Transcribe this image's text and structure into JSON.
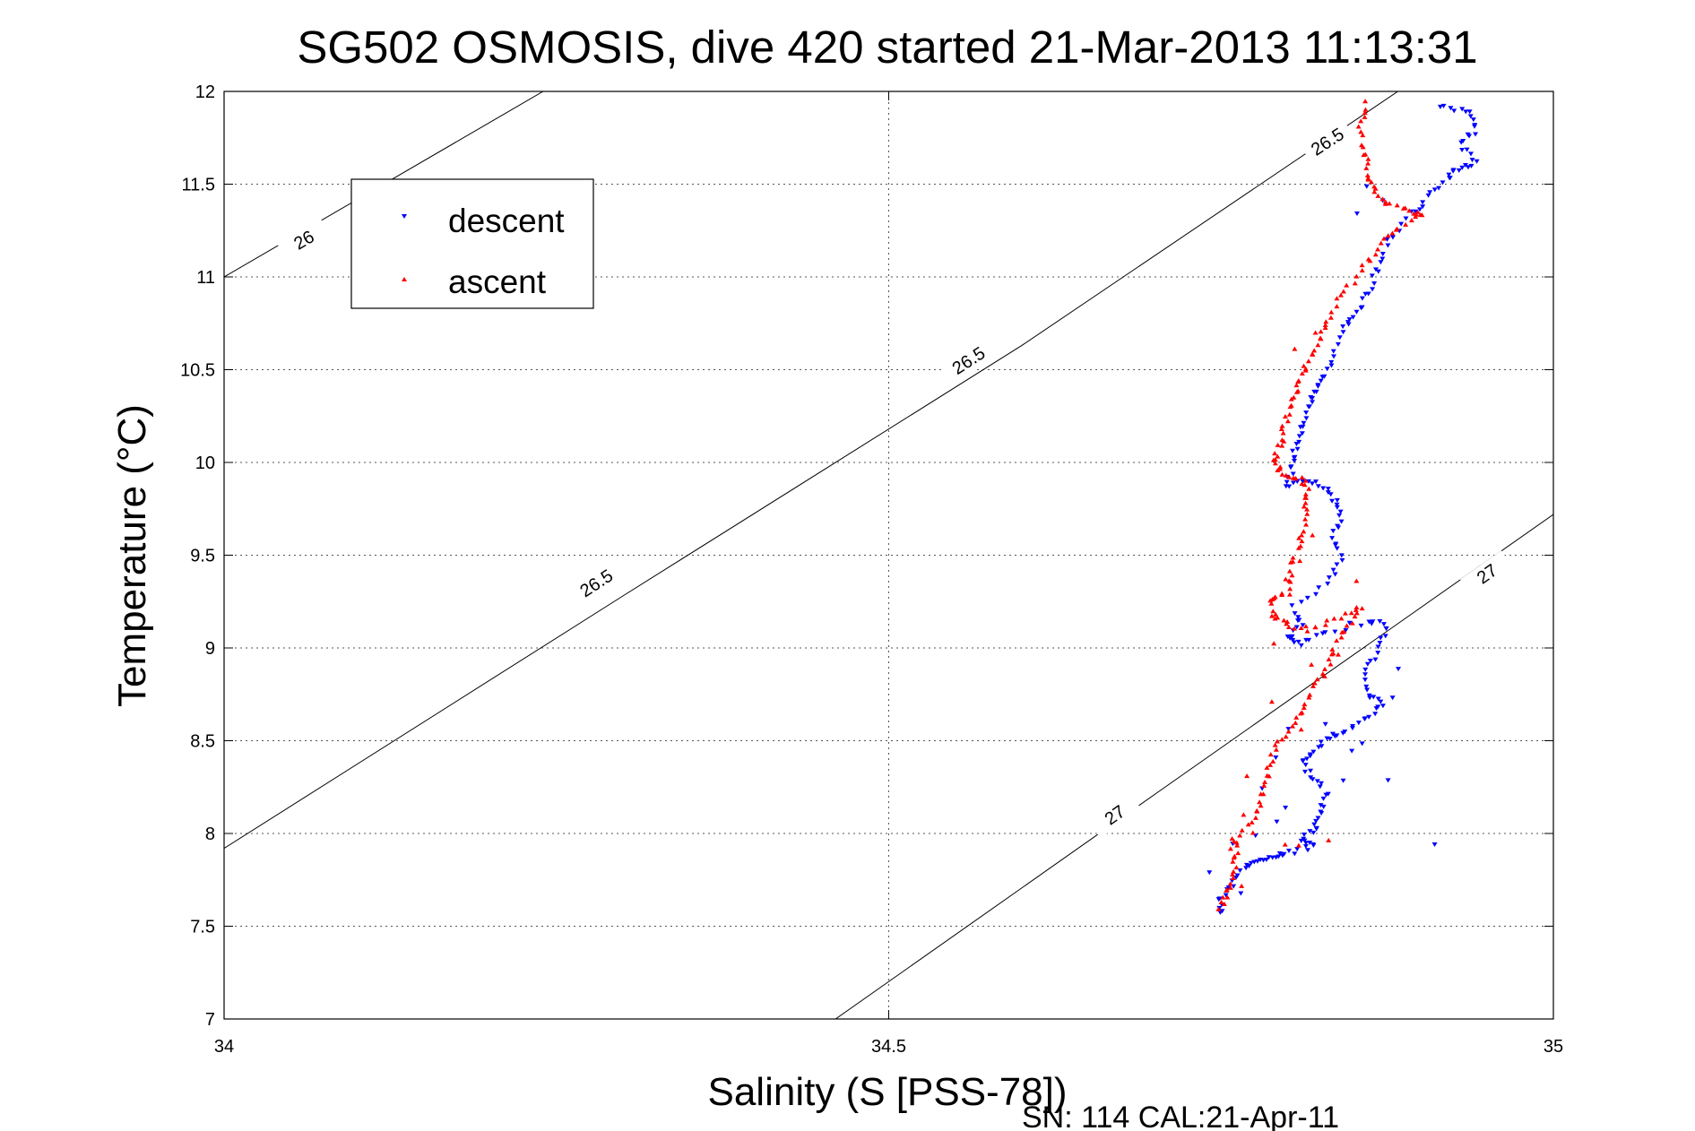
{
  "chart_data": {
    "type": "scatter",
    "title": "SG502 OSMOSIS, dive 420 started 21-Mar-2013 11:13:31",
    "xlabel": "Salinity (S [PSS-78])",
    "ylabel": "Temperature (°C)",
    "footer": "SN: 114  CAL:21-Apr-11",
    "xlim": [
      34,
      35
    ],
    "ylim": [
      7,
      12
    ],
    "x_ticks": [
      "34",
      "34.5",
      "35"
    ],
    "y_ticks": [
      "7",
      "7.5",
      "8",
      "8.5",
      "9",
      "9.5",
      "10",
      "10.5",
      "11",
      "11.5",
      "12"
    ],
    "grid": true,
    "legend_position": "top-left",
    "density_contours": [
      {
        "label": "26",
        "label_at": {
          "x": 34.06,
          "y": 11.2
        },
        "points": [
          [
            34.0,
            11.0
          ],
          [
            34.24,
            12.0
          ]
        ]
      },
      {
        "label": "26.5",
        "label_at": {
          "x": 34.56,
          "y": 10.55
        },
        "points": [
          [
            34.0,
            7.92
          ],
          [
            34.3,
            9.28
          ],
          [
            34.6,
            10.63
          ],
          [
            34.883,
            12.0
          ]
        ]
      },
      {
        "label": "27",
        "label_at": {
          "x": 34.67,
          "y": 8.1
        },
        "points": [
          [
            34.46,
            7.0
          ],
          [
            34.7,
            8.21
          ],
          [
            35.0,
            9.72
          ]
        ]
      }
    ],
    "contour_labels_extra": [
      {
        "label": "26.5",
        "x": 34.28,
        "y": 9.35
      },
      {
        "label": "26.5",
        "x": 34.83,
        "y": 11.73
      },
      {
        "label": "27",
        "x": 34.95,
        "y": 9.4
      }
    ],
    "series": [
      {
        "name": "descent",
        "color": "#0000ff",
        "marker": "triangle-down",
        "path": [
          [
            34.915,
            11.92
          ],
          [
            34.935,
            11.9
          ],
          [
            34.942,
            11.8
          ],
          [
            34.93,
            11.72
          ],
          [
            34.943,
            11.62
          ],
          [
            34.928,
            11.58
          ],
          [
            34.92,
            11.53
          ],
          [
            34.905,
            11.43
          ],
          [
            34.893,
            11.34
          ],
          [
            34.877,
            11.2
          ],
          [
            34.868,
            11.05
          ],
          [
            34.862,
            10.92
          ],
          [
            34.852,
            10.8
          ],
          [
            34.843,
            10.72
          ],
          [
            34.835,
            10.58
          ],
          [
            34.828,
            10.45
          ],
          [
            34.82,
            10.38
          ],
          [
            34.815,
            10.3
          ],
          [
            34.81,
            10.18
          ],
          [
            34.806,
            10.08
          ],
          [
            34.804,
            9.98
          ],
          [
            34.8,
            9.88
          ],
          [
            34.81,
            9.9
          ],
          [
            34.825,
            9.88
          ],
          [
            34.835,
            9.8
          ],
          [
            34.84,
            9.72
          ],
          [
            34.835,
            9.6
          ],
          [
            34.84,
            9.48
          ],
          [
            34.83,
            9.35
          ],
          [
            34.805,
            9.22
          ],
          [
            34.81,
            9.12
          ],
          [
            34.8,
            9.05
          ],
          [
            34.81,
            9.02
          ],
          [
            34.83,
            9.08
          ],
          [
            34.86,
            9.15
          ],
          [
            34.875,
            9.12
          ],
          [
            34.87,
            9.0
          ],
          [
            34.86,
            8.88
          ],
          [
            34.86,
            8.75
          ],
          [
            34.872,
            8.7
          ],
          [
            34.86,
            8.62
          ],
          [
            34.845,
            8.55
          ],
          [
            34.83,
            8.52
          ],
          [
            34.82,
            8.45
          ],
          [
            34.812,
            8.38
          ],
          [
            34.82,
            8.3
          ],
          [
            34.83,
            8.2
          ],
          [
            34.825,
            8.1
          ],
          [
            34.82,
            8.02
          ],
          [
            34.81,
            7.97
          ],
          [
            34.82,
            7.93
          ],
          [
            34.8,
            7.9
          ],
          [
            34.79,
            7.88
          ],
          [
            34.78,
            7.85
          ],
          [
            34.77,
            7.82
          ],
          [
            34.76,
            7.75
          ],
          [
            34.75,
            7.65
          ],
          [
            34.75,
            7.58
          ]
        ],
        "extra": [
          [
            34.852,
            11.35
          ],
          [
            34.87,
            11.42
          ],
          [
            34.86,
            11.5
          ],
          [
            34.78,
            8.25
          ],
          [
            34.79,
            8.05
          ],
          [
            34.85,
            8.45
          ],
          [
            34.84,
            8.3
          ],
          [
            34.88,
            8.72
          ],
          [
            34.855,
            8.48
          ],
          [
            34.875,
            8.3
          ],
          [
            34.885,
            8.88
          ],
          [
            34.79,
            8.4
          ],
          [
            34.8,
            8.15
          ],
          [
            34.74,
            7.8
          ],
          [
            34.765,
            7.68
          ],
          [
            34.91,
            7.93
          ],
          [
            34.775,
            7.98
          ],
          [
            34.83,
            8.6
          ],
          [
            34.8,
            8.55
          ],
          [
            34.76,
            7.95
          ]
        ]
      },
      {
        "name": "ascent",
        "color": "#ff0000",
        "marker": "triangle-up",
        "path": [
          [
            34.86,
            11.94
          ],
          [
            34.855,
            11.8
          ],
          [
            34.858,
            11.67
          ],
          [
            34.86,
            11.55
          ],
          [
            34.865,
            11.48
          ],
          [
            34.875,
            11.4
          ],
          [
            34.893,
            11.35
          ],
          [
            34.9,
            11.33
          ],
          [
            34.88,
            11.25
          ],
          [
            34.868,
            11.16
          ],
          [
            34.855,
            11.02
          ],
          [
            34.84,
            10.9
          ],
          [
            34.83,
            10.75
          ],
          [
            34.825,
            10.66
          ],
          [
            34.815,
            10.55
          ],
          [
            34.81,
            10.45
          ],
          [
            34.805,
            10.35
          ],
          [
            34.8,
            10.25
          ],
          [
            34.795,
            10.12
          ],
          [
            34.79,
            10.02
          ],
          [
            34.795,
            9.95
          ],
          [
            34.805,
            9.92
          ],
          [
            34.815,
            9.88
          ],
          [
            34.815,
            9.78
          ],
          [
            34.812,
            9.66
          ],
          [
            34.808,
            9.55
          ],
          [
            34.803,
            9.42
          ],
          [
            34.8,
            9.3
          ],
          [
            34.787,
            9.26
          ],
          [
            34.79,
            9.17
          ],
          [
            34.8,
            9.12
          ],
          [
            34.815,
            9.1
          ],
          [
            34.835,
            9.15
          ],
          [
            34.855,
            9.22
          ],
          [
            34.845,
            9.12
          ],
          [
            34.835,
            9.0
          ],
          [
            34.83,
            8.88
          ],
          [
            34.82,
            8.78
          ],
          [
            34.81,
            8.66
          ],
          [
            34.8,
            8.55
          ],
          [
            34.79,
            8.44
          ],
          [
            34.785,
            8.32
          ],
          [
            34.78,
            8.2
          ],
          [
            34.775,
            8.08
          ],
          [
            34.76,
            7.98
          ],
          [
            34.762,
            7.88
          ],
          [
            34.758,
            7.78
          ],
          [
            34.755,
            7.68
          ],
          [
            34.75,
            7.6
          ]
        ],
        "extra": [
          [
            34.798,
            10.12
          ],
          [
            34.805,
            10.6
          ],
          [
            34.822,
            10.7
          ],
          [
            34.81,
            9.48
          ],
          [
            34.82,
            9.6
          ],
          [
            34.8,
            9.38
          ],
          [
            34.79,
            9.02
          ],
          [
            34.82,
            8.9
          ],
          [
            34.84,
            8.95
          ],
          [
            34.765,
            8.1
          ],
          [
            34.77,
            8.3
          ],
          [
            34.775,
            8.0
          ],
          [
            34.758,
            7.92
          ],
          [
            34.765,
            7.72
          ],
          [
            34.81,
            7.93
          ],
          [
            34.83,
            7.95
          ],
          [
            34.8,
            7.95
          ],
          [
            34.85,
            9.35
          ],
          [
            34.81,
            8.55
          ],
          [
            34.79,
            8.7
          ]
        ]
      }
    ]
  }
}
